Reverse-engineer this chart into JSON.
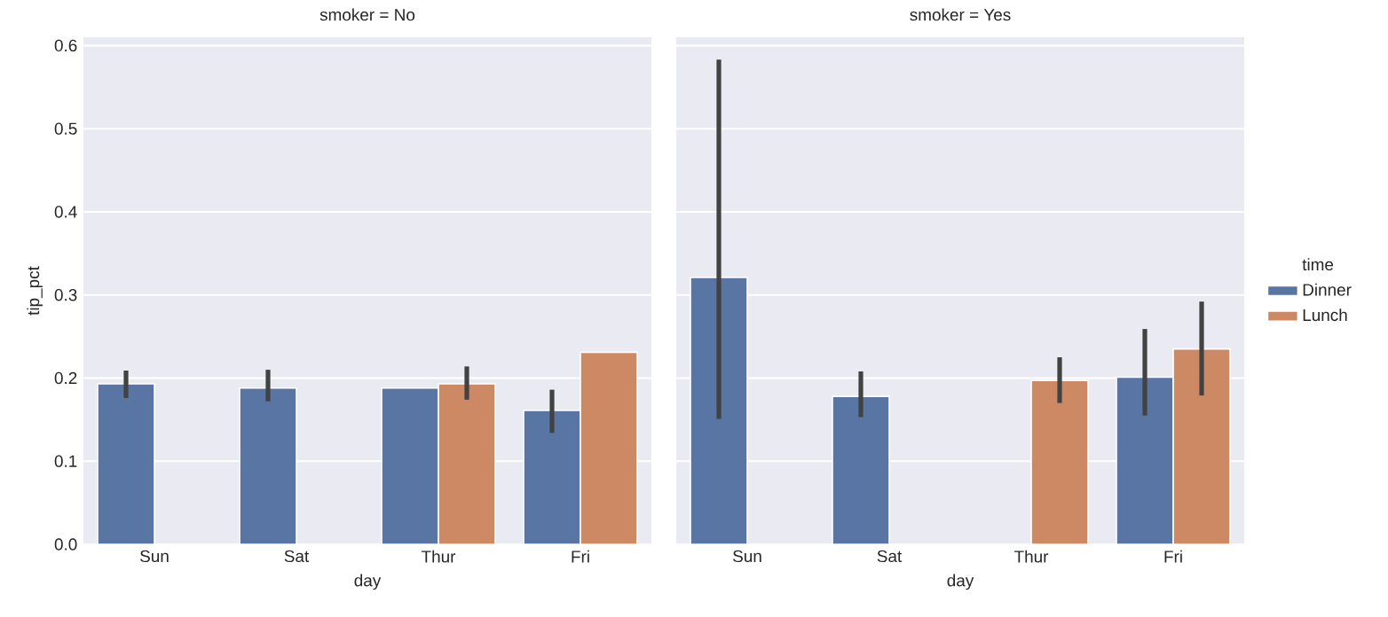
{
  "chart_data": [
    {
      "type": "bar",
      "title": "smoker = No",
      "xlabel": "day",
      "ylabel": "tip_pct",
      "categories": [
        "Sun",
        "Sat",
        "Thur",
        "Fri"
      ],
      "series": [
        {
          "color": "#5975a4",
          "values": [
            0.193,
            0.188,
            0.188,
            0.161
          ],
          "errors": [
            [
              0.176,
              0.209
            ],
            [
              0.172,
              0.21
            ],
            null,
            [
              0.134,
              0.186
            ]
          ]
        },
        {
          "color": "#cc8963",
          "values": [
            null,
            null,
            0.193,
            0.231
          ],
          "errors": [
            null,
            null,
            [
              0.174,
              0.214
            ],
            null
          ]
        }
      ],
      "ylim": [
        0,
        0.61
      ],
      "yticks": [
        {
          "value": 0,
          "label": "0.0"
        },
        0.1,
        0.2,
        0.3,
        0.4,
        0.5,
        0.6
      ],
      "grid": "y",
      "legend": false
    },
    {
      "type": "bar",
      "title": "smoker = Yes",
      "xlabel": "day",
      "categories": [
        "Sun",
        "Sat",
        "Thur",
        "Fri"
      ],
      "series": [
        {
          "name": "Dinner",
          "color": "#5975a4",
          "values": [
            0.321,
            0.178,
            null,
            0.201
          ],
          "errors": [
            [
              0.151,
              0.583
            ],
            [
              0.153,
              0.208
            ],
            null,
            [
              0.155,
              0.259
            ]
          ]
        },
        {
          "name": "Lunch",
          "color": "#cc8963",
          "values": [
            null,
            null,
            0.197,
            0.235
          ],
          "errors": [
            null,
            null,
            [
              0.17,
              0.225
            ],
            [
              0.179,
              0.292
            ]
          ]
        }
      ],
      "ylim": [
        0,
        0.61
      ],
      "yticks": [
        0,
        0.1,
        0.2,
        0.3,
        0.4,
        0.5,
        0.6
      ],
      "grid": "y",
      "tick_labels": "x",
      "legend": "right",
      "legend_title": "time"
    }
  ]
}
